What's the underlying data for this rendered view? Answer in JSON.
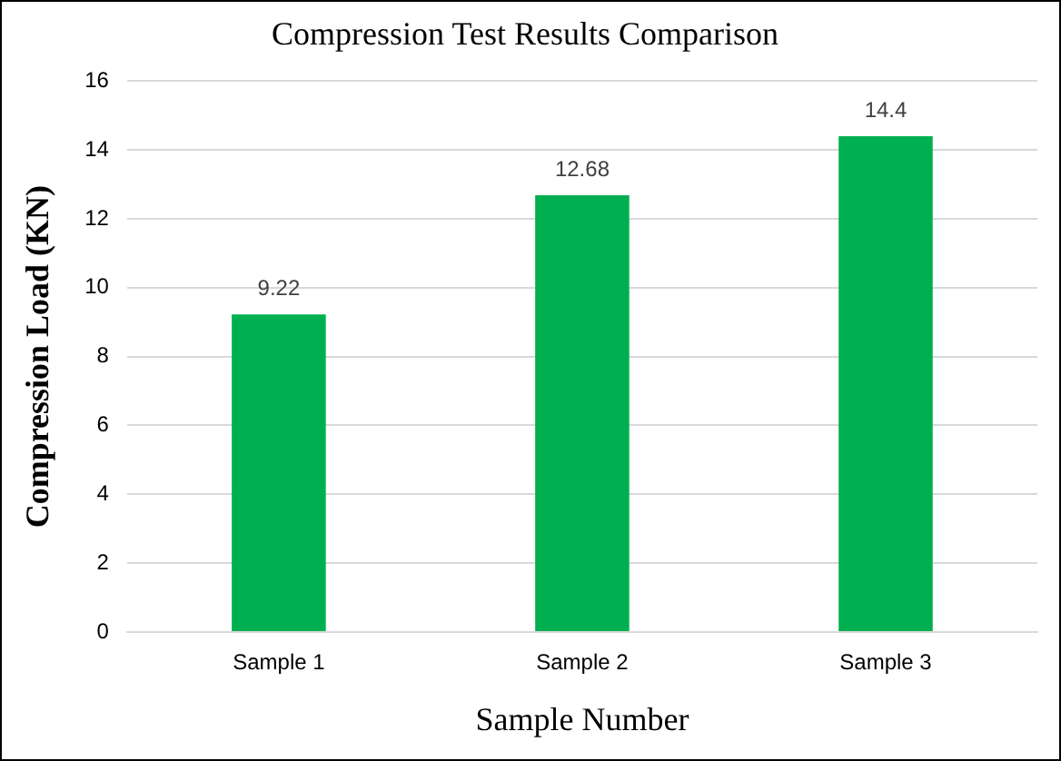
{
  "chart_data": {
    "type": "bar",
    "title": "Compression Test Results Comparison",
    "xlabel": "Sample Number",
    "ylabel": "Compression Load (KN)",
    "categories": [
      "Sample 1",
      "Sample 2",
      "Sample 3"
    ],
    "values": [
      9.22,
      12.68,
      14.4
    ],
    "color": "#00b050",
    "ylim": [
      0,
      16
    ],
    "yticks": [
      0,
      2,
      4,
      6,
      8,
      10,
      12,
      14,
      16
    ],
    "grid": "y",
    "data_labels": true
  }
}
